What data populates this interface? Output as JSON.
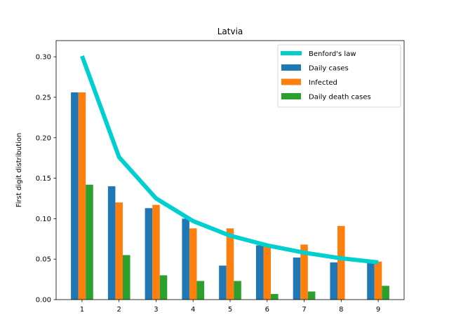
{
  "chart_data": {
    "type": "bar",
    "title": "Latvia",
    "xlabel": "",
    "ylabel": "First digit distribution",
    "categories": [
      "1",
      "2",
      "3",
      "4",
      "5",
      "6",
      "7",
      "8",
      "9"
    ],
    "x": [
      1,
      2,
      3,
      4,
      5,
      6,
      7,
      8,
      9
    ],
    "ylim": [
      0,
      0.32
    ],
    "xlim": [
      0.3,
      9.7
    ],
    "yticks": [
      0.0,
      0.05,
      0.1,
      0.15,
      0.2,
      0.25,
      0.3
    ],
    "ytick_labels": [
      "0.00",
      "0.05",
      "0.10",
      "0.15",
      "0.20",
      "0.25",
      "0.30"
    ],
    "grid": false,
    "legend_position": "top-right",
    "series": [
      {
        "name": "Daily cases",
        "kind": "bar",
        "color": "#1f77b4",
        "values": [
          0.256,
          0.14,
          0.113,
          0.1,
          0.042,
          0.067,
          0.052,
          0.046,
          0.046
        ]
      },
      {
        "name": "Infected",
        "kind": "bar",
        "color": "#ff7f0e",
        "values": [
          0.256,
          0.12,
          0.117,
          0.088,
          0.088,
          0.067,
          0.068,
          0.091,
          0.047
        ]
      },
      {
        "name": "Daily death cases",
        "kind": "bar",
        "color": "#2ca02c",
        "values": [
          0.142,
          0.055,
          0.03,
          0.023,
          0.023,
          0.007,
          0.01,
          0.0,
          0.017
        ]
      }
    ],
    "line": {
      "name": "Benford's law",
      "kind": "line",
      "color": "#00cfcf",
      "values": [
        0.301,
        0.176,
        0.125,
        0.097,
        0.079,
        0.067,
        0.058,
        0.051,
        0.046
      ]
    },
    "legend": [
      "Benford's law",
      "Daily cases",
      "Infected",
      "Daily death cases"
    ]
  }
}
